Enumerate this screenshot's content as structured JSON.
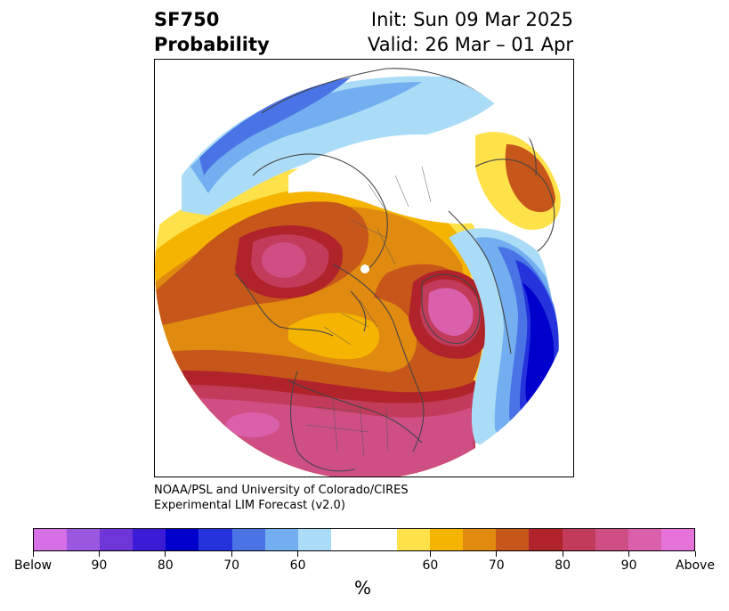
{
  "title": {
    "left_line1": "SF750",
    "left_line2": "Probability",
    "right_line1": "Init: Sun 09 Mar 2025",
    "right_line2": "Valid: 26 Mar – 01 Apr"
  },
  "credit": {
    "line1": "NOAA/PSL and University of Colorado/CIRES",
    "line2": "Experimental LIM Forecast (v2.0)"
  },
  "colorbar": {
    "unit": "%",
    "colors": [
      "#d76fe6",
      "#9b57e0",
      "#6e36d8",
      "#3b1bd6",
      "#0000cc",
      "#2433db",
      "#4a74e6",
      "#73aef0",
      "#abdcf7",
      "#ffffff",
      "#ffffff",
      "#ffe14a",
      "#f4b400",
      "#e08a10",
      "#c6561a",
      "#b0232b",
      "#c23b5a",
      "#cf4f84",
      "#db60ac",
      "#e673d9"
    ],
    "tick_labels": [
      "Below",
      "90",
      "80",
      "70",
      "60",
      "60",
      "70",
      "80",
      "90",
      "Above"
    ]
  },
  "map": {
    "projection": "north-polar-stereographic",
    "colors": {
      "above_max": "#e673d9",
      "above_90": "#db60ac",
      "above_80": "#c23b5a",
      "above_75": "#b0232b",
      "above_70": "#c6561a",
      "above_65": "#e08a10",
      "above_60": "#f4b400",
      "above_55": "#ffe14a",
      "below_55": "#abdcf7",
      "below_60": "#73aef0",
      "below_70": "#4a74e6",
      "below_80": "#2433db",
      "below_90": "#0000cc",
      "coast": "#444444"
    }
  }
}
